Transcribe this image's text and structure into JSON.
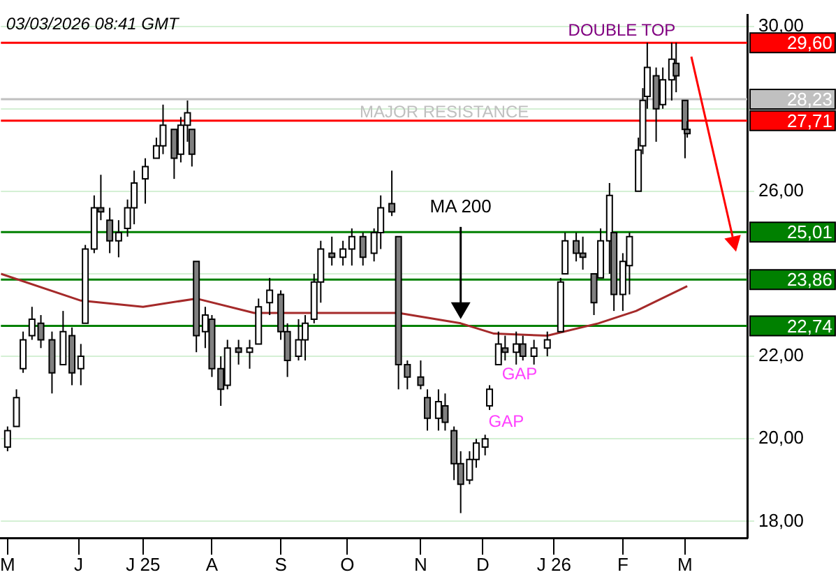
{
  "chart_data": {
    "type": "candlestick",
    "x": [
      "2025-05-01",
      "2025-05-05",
      "2025-05-08",
      "2025-05-12",
      "2025-05-16",
      "2025-05-21",
      "2025-05-26",
      "2025-05-30",
      "2025-06-03",
      "2025-06-05",
      "2025-06-09",
      "2025-06-12",
      "2025-06-16",
      "2025-06-20",
      "2025-06-24",
      "2025-06-27",
      "2025-07-02",
      "2025-07-07",
      "2025-07-10",
      "2025-07-15",
      "2025-07-18",
      "2025-07-21",
      "2025-07-23",
      "2025-07-25",
      "2025-07-29",
      "2025-08-01",
      "2025-08-05",
      "2025-08-08",
      "2025-08-13",
      "2025-08-18",
      "2025-08-22",
      "2025-08-27",
      "2025-09-01",
      "2025-09-04",
      "2025-09-09",
      "2025-09-12",
      "2025-09-16",
      "2025-09-19",
      "2025-09-24",
      "2025-09-29",
      "2025-10-03",
      "2025-10-08",
      "2025-10-13",
      "2025-10-16",
      "2025-10-21",
      "2025-10-24",
      "2025-10-28",
      "2025-11-03",
      "2025-11-06",
      "2025-11-11",
      "2025-11-14",
      "2025-11-18",
      "2025-11-21",
      "2025-11-25",
      "2025-11-28",
      "2025-12-02",
      "2025-12-04",
      "2025-12-08",
      "2025-12-11",
      "2025-12-16",
      "2025-12-19",
      "2025-12-24",
      "2025-12-30",
      "2026-01-05",
      "2026-01-07",
      "2026-01-12",
      "2026-01-15",
      "2026-01-20",
      "2026-01-23",
      "2026-01-27",
      "2026-01-29",
      "2026-02-02",
      "2026-02-05",
      "2026-02-09",
      "2026-02-11",
      "2026-02-13",
      "2026-02-17",
      "2026-02-20",
      "2026-02-24",
      "2026-02-26",
      "2026-03-02",
      "2026-03-03"
    ],
    "ohlc": [
      [
        19.8,
        20.3,
        19.7,
        20.2
      ],
      [
        20.3,
        21.2,
        20.3,
        21.0
      ],
      [
        21.7,
        22.6,
        21.6,
        22.4
      ],
      [
        22.5,
        23.2,
        22.4,
        22.9
      ],
      [
        22.8,
        23.0,
        22.2,
        22.4
      ],
      [
        22.4,
        22.6,
        21.1,
        21.6
      ],
      [
        21.8,
        23.1,
        21.8,
        22.6
      ],
      [
        22.5,
        22.7,
        21.3,
        21.6
      ],
      [
        21.7,
        22.3,
        21.3,
        22.0
      ],
      [
        22.8,
        24.7,
        22.8,
        24.6
      ],
      [
        24.6,
        25.9,
        24.5,
        25.6
      ],
      [
        25.6,
        26.4,
        25.3,
        25.5
      ],
      [
        25.3,
        25.6,
        24.5,
        24.8
      ],
      [
        24.8,
        25.3,
        24.4,
        25.0
      ],
      [
        25.1,
        25.8,
        24.9,
        25.6
      ],
      [
        25.6,
        26.5,
        25.2,
        26.2
      ],
      [
        26.3,
        26.8,
        25.7,
        26.6
      ],
      [
        26.8,
        27.3,
        26.8,
        27.1
      ],
      [
        27.1,
        28.1,
        26.9,
        27.6
      ],
      [
        27.5,
        27.5,
        26.3,
        26.8
      ],
      [
        26.9,
        27.8,
        26.7,
        27.6
      ],
      [
        27.6,
        28.2,
        27.2,
        27.9
      ],
      [
        27.5,
        27.5,
        26.6,
        26.9
      ],
      [
        24.3,
        24.3,
        22.1,
        22.5
      ],
      [
        22.6,
        23.2,
        22.2,
        23.0
      ],
      [
        22.9,
        23.0,
        21.5,
        21.7
      ],
      [
        21.7,
        22.0,
        20.8,
        21.2
      ],
      [
        21.3,
        22.4,
        21.2,
        22.2
      ],
      [
        22.2,
        22.4,
        21.8,
        22.1
      ],
      [
        22.1,
        22.4,
        21.7,
        22.2
      ],
      [
        22.3,
        23.4,
        22.3,
        23.2
      ],
      [
        23.3,
        23.9,
        23.0,
        23.6
      ],
      [
        23.5,
        23.6,
        22.4,
        22.6
      ],
      [
        22.6,
        22.8,
        21.5,
        21.9
      ],
      [
        22.0,
        22.9,
        21.9,
        22.4
      ],
      [
        22.4,
        23.0,
        21.9,
        22.8
      ],
      [
        22.9,
        24.0,
        22.8,
        23.8
      ],
      [
        23.8,
        24.8,
        23.3,
        24.6
      ],
      [
        24.5,
        24.9,
        24.2,
        24.4
      ],
      [
        24.4,
        24.8,
        24.2,
        24.6
      ],
      [
        24.6,
        25.1,
        24.2,
        24.9
      ],
      [
        24.9,
        25.0,
        24.2,
        24.4
      ],
      [
        24.5,
        25.1,
        24.3,
        25.0
      ],
      [
        25.0,
        25.9,
        24.6,
        25.6
      ],
      [
        25.7,
        26.5,
        25.4,
        25.5
      ],
      [
        24.9,
        24.9,
        21.2,
        21.8
      ],
      [
        21.8,
        21.9,
        21.2,
        21.5
      ],
      [
        21.5,
        21.9,
        21.2,
        21.3
      ],
      [
        21.0,
        21.2,
        20.2,
        20.5
      ],
      [
        20.5,
        21.2,
        20.2,
        20.9
      ],
      [
        20.8,
        21.1,
        20.2,
        20.4
      ],
      [
        20.2,
        20.3,
        19.0,
        19.4
      ],
      [
        19.4,
        19.7,
        18.2,
        18.9
      ],
      [
        19.0,
        19.7,
        18.9,
        19.5
      ],
      [
        19.5,
        20.0,
        19.3,
        19.9
      ],
      [
        19.8,
        20.1,
        19.6,
        20.0
      ],
      [
        20.8,
        21.3,
        20.7,
        21.2
      ],
      [
        21.8,
        22.6,
        21.8,
        22.3
      ],
      [
        22.2,
        22.5,
        21.9,
        22.1
      ],
      [
        22.1,
        22.6,
        21.8,
        22.3
      ],
      [
        22.3,
        22.5,
        21.9,
        22.0
      ],
      [
        22.0,
        22.4,
        21.8,
        22.2
      ],
      [
        22.2,
        22.6,
        22.0,
        22.4
      ],
      [
        22.6,
        23.9,
        22.6,
        23.8
      ],
      [
        24.0,
        25.0,
        24.0,
        24.8
      ],
      [
        24.8,
        25.0,
        24.3,
        24.5
      ],
      [
        24.5,
        24.9,
        24.1,
        24.4
      ],
      [
        24.0,
        24.0,
        23.0,
        23.3
      ],
      [
        23.9,
        25.1,
        23.9,
        24.8
      ],
      [
        24.8,
        26.2,
        24.0,
        25.9
      ],
      [
        25.0,
        25.0,
        23.1,
        23.5
      ],
      [
        23.5,
        24.5,
        23.1,
        24.3
      ],
      [
        24.2,
        25.0,
        23.5,
        24.9
      ],
      [
        26.0,
        27.3,
        26.0,
        27.0
      ],
      [
        27.1,
        28.5,
        26.9,
        28.2
      ],
      [
        28.3,
        29.6,
        28.0,
        29.0
      ],
      [
        28.8,
        29.0,
        27.2,
        28.0
      ],
      [
        28.1,
        29.0,
        28.0,
        28.7
      ],
      [
        28.7,
        29.6,
        28.2,
        29.2
      ],
      [
        29.1,
        29.6,
        28.4,
        28.8
      ],
      [
        28.2,
        28.2,
        26.8,
        27.5
      ],
      [
        27.5,
        27.7,
        27.3,
        27.4
      ]
    ],
    "series": [
      {
        "name": "MA 200",
        "type": "line",
        "color": "#a52a2a",
        "x": [
          "2025-04-28",
          "2025-06-03",
          "2025-07-01",
          "2025-07-25",
          "2025-08-20",
          "2025-09-13",
          "2025-10-24",
          "2025-11-21",
          "2025-12-06",
          "2025-12-30",
          "2026-01-22",
          "2026-02-08",
          "2026-03-03"
        ],
        "values": [
          24.0,
          23.35,
          23.2,
          23.4,
          23.05,
          23.05,
          23.05,
          22.8,
          22.55,
          22.5,
          22.8,
          23.1,
          23.7
        ]
      }
    ],
    "xlim": [
      "2025-04-28",
      "2026-03-30"
    ],
    "xticks": [
      {
        "value": "2025-05-01",
        "label": "M"
      },
      {
        "value": "2025-06-02",
        "label": "J"
      },
      {
        "value": "2025-07-01",
        "label": "J 25"
      },
      {
        "value": "2025-08-01",
        "label": "A"
      },
      {
        "value": "2025-09-01",
        "label": "S"
      },
      {
        "value": "2025-10-01",
        "label": "O"
      },
      {
        "value": "2025-11-03",
        "label": "N"
      },
      {
        "value": "2025-12-01",
        "label": "D"
      },
      {
        "value": "2026-01-02",
        "label": "J 26"
      },
      {
        "value": "2026-02-02",
        "label": "F"
      },
      {
        "value": "2026-03-02",
        "label": "M"
      }
    ],
    "ylim": [
      17.6,
      30.27
    ],
    "yticks": [
      {
        "value": 18,
        "label": "18,00"
      },
      {
        "value": 20,
        "label": "20,00"
      },
      {
        "value": 22,
        "label": "22,00"
      },
      {
        "value": 24,
        "label": null
      },
      {
        "value": 26,
        "label": "26,00"
      },
      {
        "value": 28,
        "label": null
      },
      {
        "value": 30,
        "label": "30,00"
      }
    ],
    "grid": "y",
    "legend": false,
    "ref_lines": [
      {
        "axis": "y",
        "value": 29.6,
        "label": "29,60",
        "color": "#ff0000"
      },
      {
        "axis": "y",
        "value": 28.23,
        "label": "28,23",
        "color": "#c0c0c0"
      },
      {
        "axis": "y",
        "value": 27.71,
        "label": "27,71",
        "color": "#ff0000"
      },
      {
        "axis": "y",
        "value": 25.01,
        "label": "25,01",
        "color": "#008000"
      },
      {
        "axis": "y",
        "value": 23.86,
        "label": "23,86",
        "color": "#008000"
      },
      {
        "axis": "y",
        "value": 22.74,
        "label": "22,74",
        "color": "#008000"
      }
    ],
    "annotations": [
      "03/03/2026 08:41 GMT",
      "DOUBLE TOP",
      "MAJOR RESISTANCE",
      "GAP",
      "GAP"
    ]
  }
}
